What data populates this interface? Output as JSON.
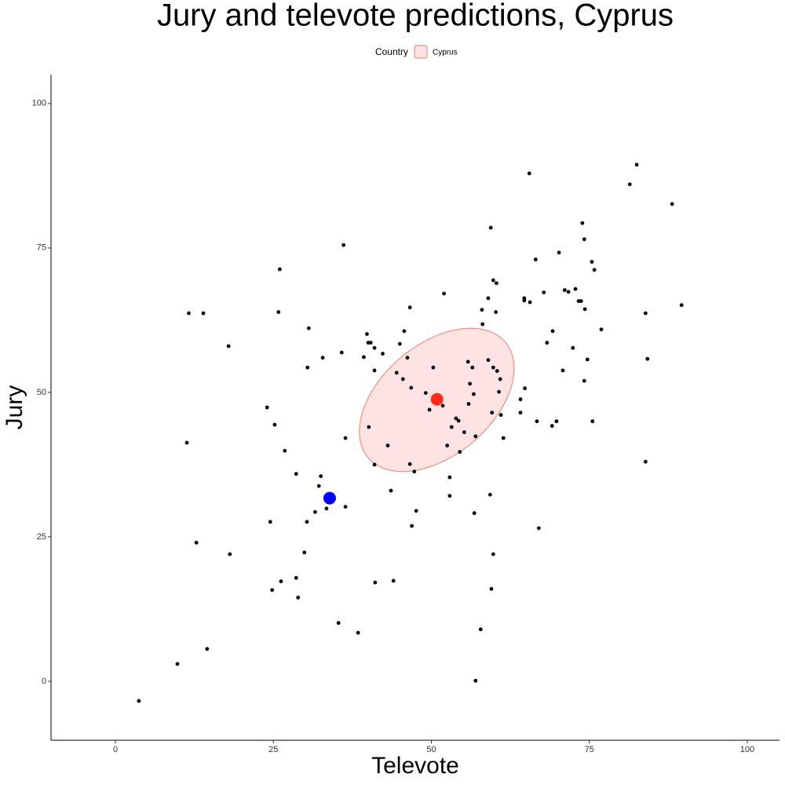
{
  "chart_data": {
    "type": "scatter",
    "title": "Jury and televote predictions, Cyprus",
    "xlabel": "Televote",
    "ylabel": "Jury",
    "legend_title": "Country",
    "xlim": [
      -10.2,
      105.1
    ],
    "ylim": [
      -10.2,
      105.0
    ],
    "xticks": [
      0,
      25,
      50,
      75,
      100
    ],
    "yticks": [
      0,
      25,
      50,
      75,
      100
    ],
    "color": "#000000",
    "x": [
      82.5,
      81.4,
      65.5,
      88.1,
      59.4,
      73.9,
      74.2,
      36.1,
      66.5,
      70.2,
      75.4,
      75.8,
      26.0,
      59.8,
      60.3,
      71.1,
      71.7,
      72.8,
      67.8,
      52.0,
      73.3,
      73.7,
      64.7,
      65.6,
      64.7,
      59.0,
      89.6,
      74.3,
      46.6,
      11.6,
      13.9,
      25.8,
      58.0,
      60.2,
      83.9,
      58.1,
      30.6,
      45.7,
      69.2,
      76.9,
      39.8,
      40.0,
      40.4,
      45.0,
      17.9,
      68.3,
      41.0,
      72.4,
      35.8,
      42.3,
      39.3,
      32.8,
      46.2,
      74.7,
      84.2,
      55.8,
      59.0,
      56.5,
      59.8,
      50.3,
      30.4,
      41.0,
      70.8,
      60.4,
      44.5,
      60.9,
      45.5,
      74.2,
      56.1,
      46.8,
      64.8,
      60.7,
      49.1,
      56.7,
      64.1,
      51.8,
      55.9,
      49.7,
      24.0,
      59.6,
      64.1,
      61.0,
      53.9,
      54.3,
      66.7,
      69.8,
      75.5,
      25.2,
      53.2,
      69.1,
      40.1,
      55.2,
      57.0,
      61.4,
      36.4,
      11.3,
      52.5,
      43.1,
      54.5,
      26.8,
      46.6,
      41.0,
      83.9,
      47.3,
      28.6,
      32.5,
      52.9,
      32.2,
      43.6,
      59.3,
      52.9,
      36.4,
      33.4,
      47.6,
      31.6,
      56.8,
      24.5,
      30.3,
      46.9,
      67.0,
      12.8,
      29.9,
      18.1,
      59.8,
      41.1,
      44.0,
      26.2,
      28.6,
      59.5,
      24.8,
      28.9,
      35.3,
      38.4,
      57.8,
      14.5,
      9.8,
      57.0,
      3.7
    ],
    "y": [
      89.4,
      86.0,
      87.9,
      82.6,
      78.5,
      79.3,
      76.5,
      75.5,
      73.0,
      74.2,
      72.6,
      71.2,
      71.3,
      69.4,
      68.9,
      67.7,
      67.4,
      67.9,
      67.3,
      67.1,
      65.8,
      65.8,
      66.3,
      65.6,
      65.9,
      66.3,
      65.1,
      64.4,
      64.7,
      63.7,
      63.7,
      63.9,
      64.3,
      63.9,
      63.7,
      61.8,
      61.1,
      60.6,
      60.6,
      60.9,
      60.1,
      58.6,
      58.6,
      58.4,
      58.0,
      58.6,
      57.7,
      57.7,
      56.9,
      56.7,
      56.1,
      56.0,
      56.0,
      55.7,
      55.8,
      55.3,
      55.6,
      54.3,
      54.3,
      54.3,
      54.3,
      53.8,
      53.8,
      53.7,
      53.4,
      52.3,
      52.3,
      52.0,
      51.5,
      50.8,
      50.7,
      50.1,
      49.9,
      49.7,
      48.8,
      47.7,
      48.0,
      47.0,
      47.4,
      46.5,
      46.5,
      46.1,
      45.5,
      45.1,
      45.0,
      45.0,
      45.0,
      44.4,
      44.0,
      44.2,
      44.0,
      43.1,
      42.4,
      42.1,
      42.1,
      41.3,
      40.8,
      40.8,
      39.7,
      39.9,
      37.6,
      37.5,
      38.0,
      36.3,
      35.9,
      35.5,
      35.3,
      33.8,
      33.0,
      32.3,
      32.1,
      30.2,
      29.9,
      29.5,
      29.3,
      29.1,
      27.6,
      27.6,
      26.9,
      26.5,
      24.0,
      22.3,
      22.0,
      22.0,
      17.1,
      17.4,
      17.3,
      17.9,
      16.0,
      15.8,
      14.5,
      10.1,
      8.4,
      9.0,
      5.6,
      3.0,
      0.1,
      -3.4
    ],
    "highlights": [
      {
        "x": 50.9,
        "y": 48.8,
        "color": "#ff2a1a"
      },
      {
        "x": 33.9,
        "y": 31.7,
        "color": "#0000ff"
      }
    ],
    "ellipse": {
      "name": "Cyprus",
      "fill": "#fde4e3",
      "stroke": "#f07b6c",
      "center_x": 50.85,
      "center_y": 48.7,
      "radius_x": 12.25,
      "radius_y": 12.4,
      "correlation": 0.44
    }
  }
}
